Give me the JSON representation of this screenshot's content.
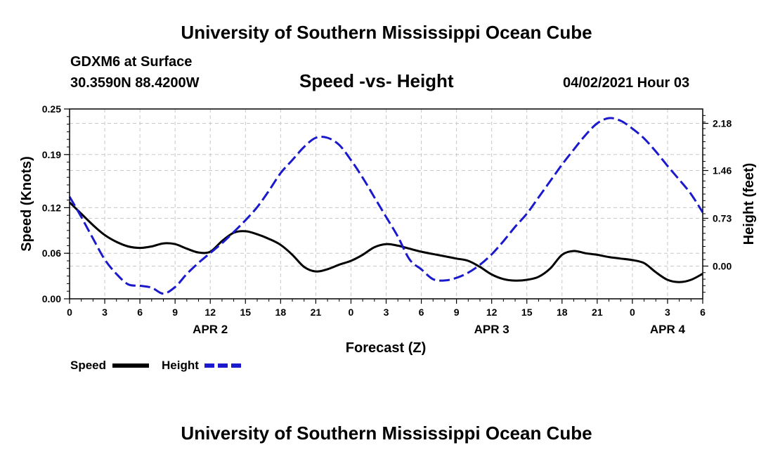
{
  "header": {
    "title_top": "University of Southern Mississippi Ocean Cube",
    "station": "GDXM6 at Surface",
    "coords": "30.3590N  88.4200W",
    "datetime": "04/02/2021 Hour 03"
  },
  "footer": {
    "title_bottom": "University of Southern Mississippi Ocean Cube"
  },
  "colors": {
    "speed": "#000000",
    "height": "#1a1acc",
    "grid": "#c8c8c8"
  },
  "chart_data": {
    "type": "line",
    "title": "Speed -vs- Height",
    "xlabel": "Forecast (Z)",
    "ylabel_left": "Speed (Knots)",
    "ylabel_right": "Height (feet)",
    "x_range": [
      0,
      54
    ],
    "x_ticks": [
      0,
      3,
      6,
      9,
      12,
      15,
      18,
      21,
      24,
      27,
      30,
      33,
      36,
      39,
      42,
      45,
      48,
      51,
      54
    ],
    "x_tick_labels": [
      "0",
      "3",
      "6",
      "9",
      "12",
      "15",
      "18",
      "21",
      "0",
      "3",
      "6",
      "9",
      "12",
      "15",
      "18",
      "21",
      "0",
      "3",
      "6"
    ],
    "date_labels": [
      {
        "label": "APR 2",
        "x": 12
      },
      {
        "label": "APR 3",
        "x": 36
      },
      {
        "label": "APR 4",
        "x": 51
      }
    ],
    "y_left": {
      "range": [
        0,
        0.25
      ],
      "ticks": [
        0.0,
        0.06,
        0.12,
        0.19,
        0.25
      ],
      "tick_labels": [
        "0.00",
        "0.06",
        "0.12",
        "0.19",
        "0.25"
      ]
    },
    "y_right": {
      "range": [
        -0.5,
        2.4
      ],
      "ticks": [
        0.0,
        0.73,
        1.46,
        2.18
      ],
      "tick_labels": [
        "0.00",
        "0.73",
        "1.46",
        "2.18"
      ]
    },
    "series": [
      {
        "name": "Speed",
        "axis": "left",
        "style": "solid",
        "x": [
          0,
          1,
          2,
          3,
          4,
          5,
          6,
          7,
          8,
          9,
          10,
          11,
          12,
          13,
          14,
          15,
          16,
          17,
          18,
          19,
          20,
          21,
          22,
          23,
          24,
          25,
          26,
          27,
          28,
          29,
          30,
          31,
          32,
          33,
          34,
          35,
          36,
          37,
          38,
          39,
          40,
          41,
          42,
          43,
          44,
          45,
          46,
          47,
          48,
          49,
          50,
          51,
          52,
          53,
          54
        ],
        "values": [
          0.127,
          0.112,
          0.097,
          0.084,
          0.075,
          0.069,
          0.067,
          0.069,
          0.073,
          0.072,
          0.066,
          0.061,
          0.062,
          0.076,
          0.087,
          0.089,
          0.085,
          0.079,
          0.071,
          0.058,
          0.042,
          0.036,
          0.039,
          0.045,
          0.05,
          0.058,
          0.068,
          0.072,
          0.07,
          0.066,
          0.062,
          0.059,
          0.056,
          0.053,
          0.05,
          0.042,
          0.032,
          0.026,
          0.024,
          0.025,
          0.029,
          0.04,
          0.058,
          0.063,
          0.06,
          0.058,
          0.055,
          0.053,
          0.051,
          0.047,
          0.035,
          0.025,
          0.022,
          0.025,
          0.033
        ]
      },
      {
        "name": "Height",
        "axis": "right",
        "style": "dashed",
        "x": [
          0,
          1,
          2,
          3,
          4,
          5,
          6,
          7,
          8,
          9,
          10,
          11,
          12,
          13,
          14,
          15,
          16,
          17,
          18,
          19,
          20,
          21,
          22,
          23,
          24,
          25,
          26,
          27,
          28,
          29,
          30,
          31,
          32,
          33,
          34,
          35,
          36,
          37,
          38,
          39,
          40,
          41,
          42,
          43,
          44,
          45,
          46,
          47,
          48,
          49,
          50,
          51,
          52,
          53,
          54
        ],
        "values": [
          1.06,
          0.75,
          0.42,
          0.1,
          -0.12,
          -0.28,
          -0.3,
          -0.33,
          -0.42,
          -0.32,
          -0.12,
          0.05,
          0.2,
          0.35,
          0.52,
          0.7,
          0.9,
          1.15,
          1.42,
          1.62,
          1.82,
          1.96,
          1.96,
          1.85,
          1.62,
          1.35,
          1.05,
          0.75,
          0.45,
          0.1,
          -0.05,
          -0.2,
          -0.22,
          -0.18,
          -0.1,
          0.02,
          0.18,
          0.38,
          0.6,
          0.8,
          1.05,
          1.3,
          1.55,
          1.78,
          2.0,
          2.18,
          2.26,
          2.22,
          2.1,
          1.95,
          1.75,
          1.53,
          1.32,
          1.1,
          0.82
        ]
      }
    ],
    "legend": [
      {
        "label": "Speed",
        "style": "solid"
      },
      {
        "label": "Height",
        "style": "dashed"
      }
    ],
    "grid": true
  }
}
